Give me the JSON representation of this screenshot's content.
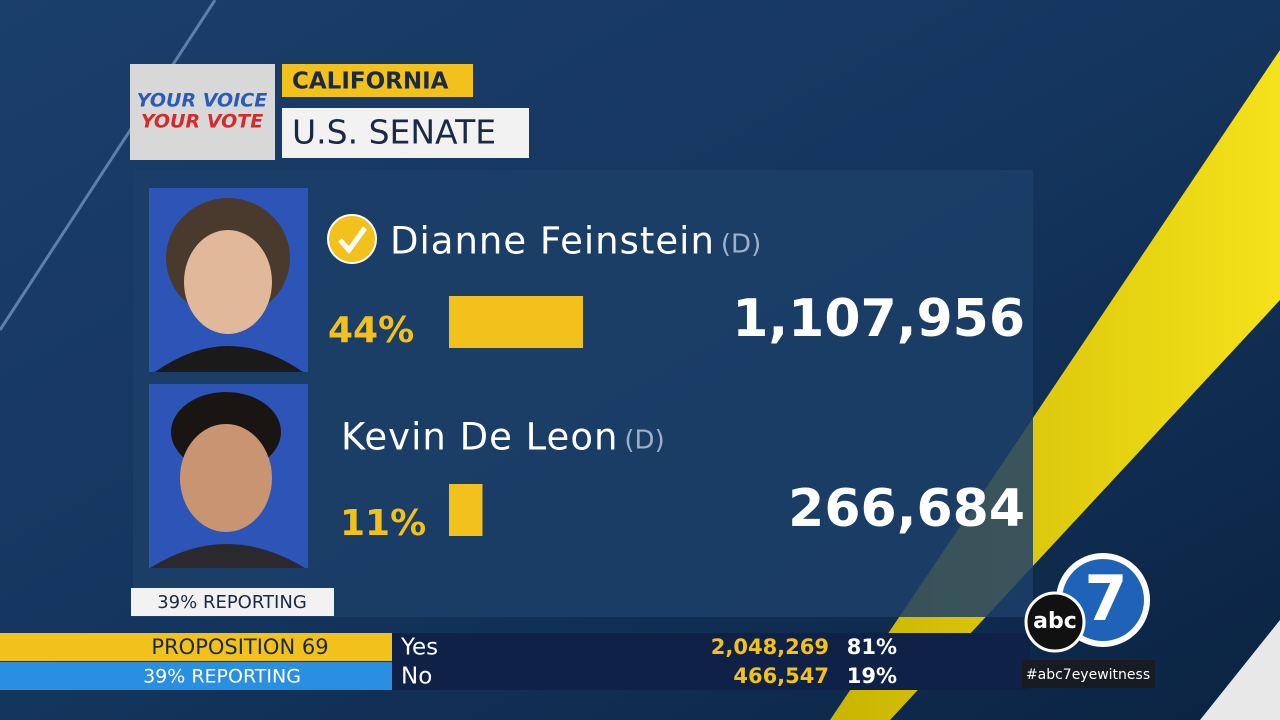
{
  "logo": {
    "line1": "YOUR VOICE",
    "line2": "YOUR VOTE"
  },
  "header": {
    "state": "CALIFORNIA",
    "race": "U.S. SENATE"
  },
  "candidates": [
    {
      "name": "Dianne Feinstein",
      "party": "(D)",
      "percent": 44,
      "percent_label": "44%",
      "votes": "1,107,956",
      "winner": true
    },
    {
      "name": "Kevin De Leon",
      "party": "(D)",
      "percent": 11,
      "percent_label": "11%",
      "votes": "266,684",
      "winner": false
    }
  ],
  "reporting": "39% REPORTING",
  "ticker": {
    "title": "PROPOSITION 69",
    "reporting": "39% REPORTING",
    "rows": [
      {
        "option": "Yes",
        "votes": "2,048,269",
        "percent": "81%"
      },
      {
        "option": "No",
        "votes": "466,547",
        "percent": "19%"
      }
    ]
  },
  "station": {
    "abc": "abc",
    "seven": "7",
    "hashtag": "#abc7eyewitness"
  }
}
